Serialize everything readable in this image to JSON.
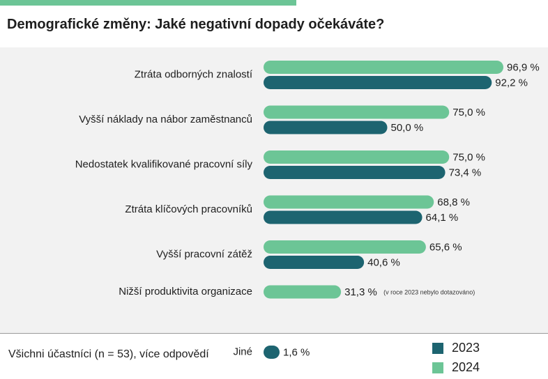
{
  "title": "Demografické změny: Jaké negativní dopady očekáváte?",
  "footnote": "Všichni účastníci (n = 53), více odpovědí",
  "colors": {
    "2024": "#6cc596",
    "2023": "#1d6470",
    "accent_bar": "#6cc596",
    "panel_bg": "#f2f2f2"
  },
  "legend": [
    {
      "name": "2023",
      "color": "#1d6470"
    },
    {
      "name": "2024",
      "color": "#6cc596"
    }
  ],
  "chart_data": {
    "type": "bar",
    "orientation": "horizontal",
    "unit": "%",
    "xlim": [
      0,
      100
    ],
    "grid": false,
    "legend_position": "bottom-right",
    "categories": [
      "Ztráta odborných znalostí",
      "Vyšší náklady na nábor zaměstnanců",
      "Nedostatek kvalifikované pracovní síly",
      "Ztráta klíčových pracovníků",
      "Vyšší pracovní zátěž",
      "Nižší produktivita organizace",
      "Jiné"
    ],
    "series": [
      {
        "name": "2024",
        "values": [
          96.9,
          75.0,
          75.0,
          68.8,
          65.6,
          31.3,
          null
        ],
        "labels": [
          "96,9 %",
          "75,0 %",
          "75,0 %",
          "68,8 %",
          "65,6 %",
          "31,3 %",
          ""
        ]
      },
      {
        "name": "2023",
        "values": [
          92.2,
          50.0,
          73.4,
          64.1,
          40.6,
          null,
          1.6
        ],
        "labels": [
          "92,2 %",
          "50,0 %",
          "73,4 %",
          "64,1 %",
          "40,6 %",
          "",
          "1,6 %"
        ]
      }
    ],
    "annotations": [
      {
        "category": "Nižší produktivita organizace",
        "text": "(v roce 2023 nebylo dotazováno)"
      }
    ]
  }
}
